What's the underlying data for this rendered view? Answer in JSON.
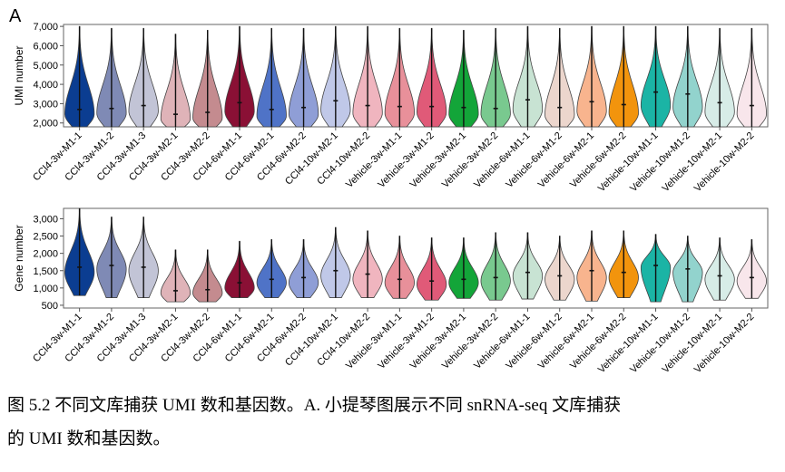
{
  "panel_label": "A",
  "caption": {
    "line1": "图 5.2  不同文库捕获 UMI 数和基因数。A.  小提琴图展示不同 snRNA-seq 文库捕获",
    "line2": "的 UMI 数和基因数。"
  },
  "chart_data": [
    {
      "type": "violin",
      "ylabel": "UMI number",
      "ylim": [
        1800,
        7100
      ],
      "yticks": [
        2000,
        3000,
        4000,
        5000,
        6000,
        7000
      ],
      "ytick_labels": [
        "2,000",
        "3,000",
        "4,000",
        "5,000",
        "6,000",
        "7,000"
      ],
      "categories": [
        "CCl4-3w-M1-1",
        "CCl4-3w-M1-2",
        "CCl4-3w-M1-3",
        "CCl4-3w-M2-1",
        "CCl4-3w-M2-2",
        "CCl4-6w-M1-1",
        "CCl4-6w-M2-1",
        "CCl4-6w-M2-2",
        "CCl4-10w-M2-1",
        "CCl4-10w-M2-2",
        "Vehicle-3w-M1-1",
        "Vehicle-3w-M1-2",
        "Vehicle-3w-M2-1",
        "Vehicle-3w-M2-2",
        "Vehicle-6w-M1-1",
        "Vehicle-6w-M1-2",
        "Vehicle-6w-M2-1",
        "Vehicle-6w-M2-2",
        "Vehicle-10w-M1-1",
        "Vehicle-10w-M1-2",
        "Vehicle-10w-M2-1",
        "Vehicle-10w-M2-2"
      ],
      "colors": [
        "#0b3d91",
        "#7f8ab5",
        "#c2c4d6",
        "#dfb3b8",
        "#c48b8f",
        "#8a1035",
        "#4f73c7",
        "#8f9ed6",
        "#c0c8e8",
        "#f0b5bf",
        "#e8909a",
        "#e05a78",
        "#13a539",
        "#79c98f",
        "#c8e3d3",
        "#ecd6cd",
        "#f8b48e",
        "#f2940d",
        "#1bb4a5",
        "#92d3cd",
        "#d7ece7",
        "#f8e6eb"
      ],
      "max": [
        7000,
        6900,
        6900,
        6600,
        6800,
        7000,
        6900,
        6900,
        7000,
        7000,
        6900,
        6900,
        6800,
        6900,
        7000,
        6900,
        7000,
        7000,
        7000,
        7000,
        6900,
        6900
      ],
      "median": [
        2700,
        2750,
        2900,
        2450,
        2550,
        3050,
        2700,
        2800,
        3150,
        2900,
        2850,
        2850,
        2800,
        2750,
        3200,
        2800,
        3100,
        2950,
        3600,
        3500,
        3050,
        2900
      ],
      "mode": [
        2450,
        2500,
        2600,
        2200,
        2250,
        2600,
        2350,
        2450,
        2650,
        2500,
        2500,
        2550,
        2450,
        2450,
        2700,
        2400,
        2600,
        2500,
        2900,
        2800,
        2550,
        2450
      ]
    },
    {
      "type": "violin",
      "ylabel": "Gene number",
      "ylim": [
        420,
        3300
      ],
      "yticks": [
        500,
        1000,
        1500,
        2000,
        2500,
        3000
      ],
      "ytick_labels": [
        "500",
        "1,000",
        "1,500",
        "2,000",
        "2,500",
        "3,000"
      ],
      "categories": [
        "CCl4-3w-M1-1",
        "CCl4-3w-M1-2",
        "CCl4-3w-M1-3",
        "CCl4-3w-M2-1",
        "CCl4-3w-M2-2",
        "CCl4-6w-M1-1",
        "CCl4-6w-M2-1",
        "CCl4-6w-M2-2",
        "CCl4-10w-M2-1",
        "CCl4-10w-M2-2",
        "Vehicle-3w-M1-1",
        "Vehicle-3w-M1-2",
        "Vehicle-3w-M2-1",
        "Vehicle-3w-M2-2",
        "Vehicle-6w-M1-1",
        "Vehicle-6w-M1-2",
        "Vehicle-6w-M2-1",
        "Vehicle-6w-M2-2",
        "Vehicle-10w-M1-1",
        "Vehicle-10w-M1-2",
        "Vehicle-10w-M2-1",
        "Vehicle-10w-M2-2"
      ],
      "colors": [
        "#0b3d91",
        "#7f8ab5",
        "#c2c4d6",
        "#dfb3b8",
        "#c48b8f",
        "#8a1035",
        "#4f73c7",
        "#8f9ed6",
        "#c0c8e8",
        "#f0b5bf",
        "#e8909a",
        "#e05a78",
        "#13a539",
        "#79c98f",
        "#c8e3d3",
        "#ecd6cd",
        "#f8b48e",
        "#f2940d",
        "#1bb4a5",
        "#92d3cd",
        "#d7ece7",
        "#f8e6eb"
      ],
      "min": [
        780,
        720,
        720,
        600,
        600,
        720,
        720,
        720,
        720,
        720,
        700,
        650,
        700,
        650,
        680,
        650,
        620,
        720,
        600,
        600,
        650,
        700
      ],
      "max": [
        3300,
        3050,
        3050,
        2100,
        2100,
        2350,
        2400,
        2400,
        2750,
        2650,
        2500,
        2450,
        2450,
        2600,
        2600,
        2500,
        2650,
        2650,
        2550,
        2500,
        2450,
        2400
      ],
      "median": [
        1600,
        1650,
        1600,
        920,
        950,
        1150,
        1250,
        1300,
        1500,
        1400,
        1250,
        1200,
        1250,
        1300,
        1450,
        1350,
        1500,
        1450,
        1650,
        1550,
        1350,
        1300
      ],
      "mode": [
        1450,
        1550,
        1500,
        850,
        850,
        1000,
        1150,
        1150,
        1350,
        1250,
        1150,
        1100,
        1150,
        1200,
        1350,
        1250,
        1300,
        1300,
        1600,
        1450,
        1250,
        1200
      ]
    }
  ]
}
